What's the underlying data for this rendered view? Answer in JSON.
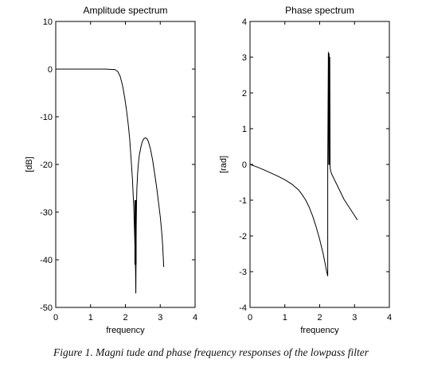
{
  "caption": "Figure 1. Magni tude and phase frequency responses of the lowpass filter",
  "chart_data": [
    {
      "type": "line",
      "title": "Amplitude spectrum",
      "xlabel": "frequency",
      "ylabel": "[dB]",
      "xlim": [
        0,
        4
      ],
      "ylim": [
        -50,
        10
      ],
      "xticks": [
        "0",
        "1",
        "2",
        "3",
        "4"
      ],
      "yticks": [
        "10",
        "0",
        "-10",
        "-20",
        "-30",
        "-40",
        "-50"
      ],
      "grid": false,
      "line_color": "#000000",
      "series": [
        {
          "x": [
            0,
            0.5,
            1.0,
            1.4,
            1.7,
            1.78,
            1.85,
            1.92,
            1.98,
            2.03,
            2.08,
            2.12,
            2.16,
            2.2,
            2.24,
            2.27,
            2.29,
            2.3,
            2.31,
            2.32,
            2.33,
            2.34,
            2.35,
            2.37,
            2.4,
            2.44,
            2.48,
            2.53,
            2.58,
            2.62,
            2.66,
            2.72,
            2.78,
            2.84,
            2.9,
            2.95,
            3.0,
            3.04,
            3.07,
            3.09,
            3.1
          ],
          "y": [
            0,
            0,
            0,
            0,
            -0.1,
            -0.5,
            -1.5,
            -3.5,
            -6,
            -8.5,
            -11.5,
            -14.5,
            -18.5,
            -23,
            -29,
            -36,
            -42,
            -47,
            -33,
            -28,
            -25,
            -23.5,
            -22,
            -20,
            -18,
            -16.5,
            -15.3,
            -14.6,
            -14.4,
            -14.6,
            -15.2,
            -16.8,
            -19,
            -22,
            -25,
            -28,
            -31,
            -34,
            -37,
            -40,
            -41.5
          ]
        },
        {
          "x": [
            2.29,
            2.29
          ],
          "y": [
            -27.5,
            -41
          ]
        }
      ]
    },
    {
      "type": "line",
      "title": "Phase spectrum",
      "xlabel": "frequency",
      "ylabel": "[rad]",
      "xlim": [
        0,
        4
      ],
      "ylim": [
        -4,
        4
      ],
      "xticks": [
        "0",
        "1",
        "2",
        "3",
        "4"
      ],
      "yticks": [
        "4",
        "3",
        "2",
        "1",
        "0",
        "-1",
        "-2",
        "-3",
        "-4"
      ],
      "grid": false,
      "line_color": "#000000",
      "series": [
        {
          "x": [
            0,
            0.2,
            0.4,
            0.6,
            0.8,
            1.0,
            1.2,
            1.4,
            1.5,
            1.6,
            1.7,
            1.8,
            1.9,
            2.0,
            2.1,
            2.15,
            2.2,
            2.23,
            2.23,
            2.25,
            2.26,
            2.27,
            2.28,
            2.29,
            2.3,
            2.32,
            2.35,
            2.4,
            2.5,
            2.6,
            2.7,
            2.8,
            2.9,
            3.0,
            3.08
          ],
          "y": [
            0,
            -0.07,
            -0.15,
            -0.24,
            -0.33,
            -0.43,
            -0.55,
            -0.72,
            -0.85,
            -1.0,
            -1.2,
            -1.45,
            -1.75,
            -2.1,
            -2.5,
            -2.75,
            -3.0,
            -3.12,
            0.0,
            3.14,
            0.0,
            3.1,
            0.0,
            3.0,
            -0.1,
            -0.2,
            -0.28,
            -0.38,
            -0.58,
            -0.78,
            -0.98,
            -1.13,
            -1.28,
            -1.43,
            -1.55
          ]
        }
      ]
    }
  ]
}
